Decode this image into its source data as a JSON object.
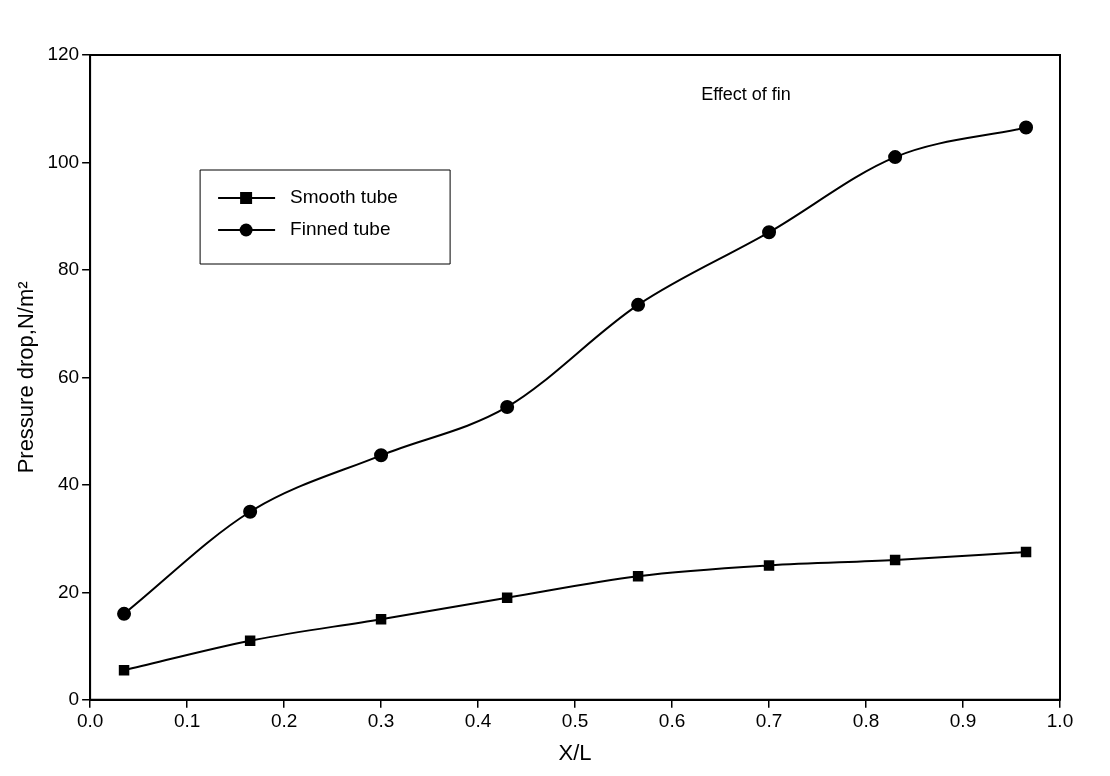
{
  "chart_data": {
    "type": "line",
    "xlabel": "X/L",
    "ylabel": "Pressure drop,N/m²",
    "annotations": [
      "Effect of fin"
    ],
    "x": [
      0.035,
      0.165,
      0.3,
      0.43,
      0.565,
      0.7,
      0.83,
      0.965
    ],
    "series": [
      {
        "name": "Smooth tube",
        "color": "#000000",
        "marker": "square",
        "values": [
          5.5,
          11,
          15,
          19,
          23,
          25,
          26,
          27.5
        ]
      },
      {
        "name": "Finned tube",
        "color": "#000000",
        "marker": "circle",
        "values": [
          16,
          35,
          45.5,
          54.5,
          73.5,
          87,
          101,
          106.5
        ]
      }
    ],
    "xlim": [
      0,
      1
    ],
    "xticks": [
      {
        "value": 0,
        "label": "0.0"
      },
      0.1,
      0.2,
      0.3,
      0.4,
      0.5,
      0.6,
      0.7,
      0.8,
      0.9,
      {
        "value": 1,
        "label": "1.0"
      }
    ],
    "ylim": [
      0,
      120
    ],
    "yticks": [
      0,
      20,
      40,
      60,
      80,
      100,
      120
    ],
    "grid": false,
    "legend": "top left",
    "line_style": "solid"
  }
}
